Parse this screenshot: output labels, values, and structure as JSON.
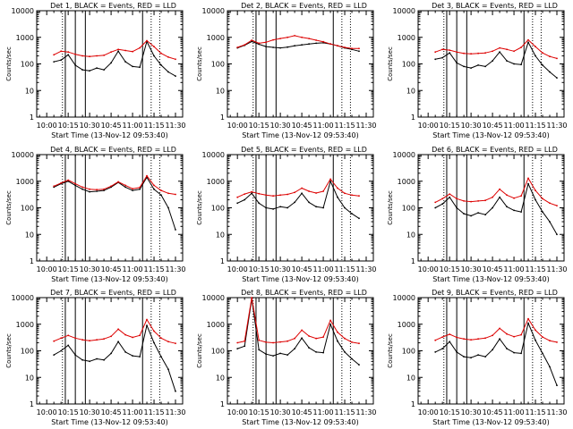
{
  "figure": {
    "ylabel": "Counts/sec",
    "xlabel": "Start Time (13-Nov-12 09:53:40)",
    "y_ticks": [
      "1",
      "10",
      "100",
      "1000",
      "10000"
    ],
    "x_ticks": [
      "10:00",
      "10:15",
      "10:30",
      "10:45",
      "11:00",
      "11:15",
      "11:30"
    ]
  },
  "colors": {
    "events": "#000000",
    "lld": "#dd0000"
  },
  "chart_data": [
    {
      "type": "line",
      "title": "Det 1,  BLACK = Events,  RED = LLD",
      "xlabel": "Start Time (13-Nov-12 09:53:40)",
      "ylabel": "Counts/sec",
      "y_scale": "log",
      "ylim": [
        1,
        10000
      ],
      "x": [
        "10:05",
        "10:10",
        "10:15",
        "10:20",
        "10:25",
        "10:30",
        "10:35",
        "10:40",
        "10:45",
        "10:50",
        "10:55",
        "11:00",
        "11:05",
        "11:10",
        "11:15",
        "11:20",
        "11:25",
        "11:30"
      ],
      "series": [
        {
          "name": "Events",
          "color": "black",
          "values": [
            120,
            140,
            220,
            90,
            60,
            55,
            70,
            60,
            110,
            300,
            120,
            80,
            75,
            700,
            200,
            90,
            50,
            35
          ]
        },
        {
          "name": "LLD",
          "color": "red",
          "values": [
            220,
            300,
            280,
            230,
            200,
            190,
            200,
            210,
            280,
            350,
            320,
            290,
            400,
            750,
            450,
            250,
            180,
            150
          ]
        }
      ],
      "vlines_solid": [
        "10:13",
        "10:20",
        "10:27",
        "11:07"
      ],
      "vlines_dotted": [
        "10:11",
        "11:13",
        "11:19"
      ]
    },
    {
      "type": "line",
      "title": "Det 2,  BLACK = Events,  RED = LLD",
      "xlabel": "Start Time (13-Nov-12 09:53:40)",
      "ylabel": "Counts/sec",
      "y_scale": "log",
      "ylim": [
        1,
        10000
      ],
      "x": [
        "10:00",
        "10:05",
        "10:10",
        "10:15",
        "10:20",
        "10:25",
        "10:30",
        "10:35",
        "10:40",
        "10:45",
        "10:50",
        "10:55",
        "11:00",
        "11:05",
        "11:10",
        "11:15",
        "11:20",
        "11:25"
      ],
      "series": [
        {
          "name": "Events",
          "color": "black",
          "values": [
            400,
            500,
            700,
            550,
            450,
            420,
            400,
            430,
            480,
            520,
            560,
            600,
            620,
            560,
            480,
            400,
            350,
            300
          ]
        },
        {
          "name": "LLD",
          "color": "red",
          "values": [
            420,
            520,
            780,
            600,
            650,
            800,
            900,
            1000,
            1150,
            1000,
            900,
            780,
            680,
            560,
            480,
            420,
            380,
            380
          ]
        }
      ],
      "vlines_solid": [
        "10:13",
        "10:20",
        "10:27",
        "11:07"
      ],
      "vlines_dotted": [
        "10:11",
        "11:13",
        "11:19"
      ]
    },
    {
      "type": "line",
      "title": "Det 3,  BLACK = Events,  RED = LLD",
      "xlabel": "Start Time (13-Nov-12 09:53:40)",
      "ylabel": "Counts/sec",
      "y_scale": "log",
      "ylim": [
        1,
        10000
      ],
      "x": [
        "10:05",
        "10:10",
        "10:15",
        "10:20",
        "10:25",
        "10:30",
        "10:35",
        "10:40",
        "10:45",
        "10:50",
        "10:55",
        "11:00",
        "11:05",
        "11:10",
        "11:15",
        "11:20",
        "11:25",
        "11:30"
      ],
      "series": [
        {
          "name": "Events",
          "color": "black",
          "values": [
            150,
            170,
            260,
            110,
            80,
            70,
            90,
            80,
            130,
            280,
            130,
            100,
            95,
            650,
            200,
            90,
            50,
            30
          ]
        },
        {
          "name": "LLD",
          "color": "red",
          "values": [
            280,
            350,
            330,
            280,
            250,
            240,
            250,
            260,
            300,
            400,
            350,
            300,
            420,
            800,
            450,
            260,
            190,
            160
          ]
        }
      ],
      "vlines_solid": [
        "10:13",
        "10:20",
        "10:27",
        "11:07"
      ],
      "vlines_dotted": [
        "10:11",
        "11:13",
        "11:19"
      ]
    },
    {
      "type": "line",
      "title": "Det 4,  BLACK = Events,  RED = LLD",
      "xlabel": "Start Time (13-Nov-12 09:53:40)",
      "ylabel": "Counts/sec",
      "y_scale": "log",
      "ylim": [
        1,
        10000
      ],
      "x": [
        "10:05",
        "10:10",
        "10:15",
        "10:20",
        "10:25",
        "10:30",
        "10:35",
        "10:40",
        "10:45",
        "10:50",
        "10:55",
        "11:00",
        "11:05",
        "11:10",
        "11:15",
        "11:20",
        "11:25",
        "11:30"
      ],
      "series": [
        {
          "name": "Events",
          "color": "black",
          "values": [
            600,
            800,
            1000,
            700,
            500,
            400,
            420,
            450,
            600,
            900,
            600,
            450,
            500,
            1400,
            500,
            300,
            100,
            15
          ]
        },
        {
          "name": "LLD",
          "color": "red",
          "values": [
            650,
            850,
            1100,
            800,
            600,
            500,
            480,
            500,
            650,
            950,
            700,
            520,
            580,
            1600,
            700,
            450,
            350,
            320
          ]
        }
      ],
      "vlines_solid": [
        "10:13",
        "10:20",
        "10:27",
        "11:07"
      ],
      "vlines_dotted": [
        "10:11",
        "11:13",
        "11:19"
      ]
    },
    {
      "type": "line",
      "title": "Det 5,  BLACK = Events,  RED = LLD",
      "xlabel": "Start Time (13-Nov-12 09:53:40)",
      "ylabel": "Counts/sec",
      "y_scale": "log",
      "ylim": [
        1,
        10000
      ],
      "x": [
        "10:00",
        "10:05",
        "10:10",
        "10:15",
        "10:20",
        "10:25",
        "10:30",
        "10:35",
        "10:40",
        "10:45",
        "10:50",
        "10:55",
        "11:00",
        "11:05",
        "11:10",
        "11:15",
        "11:20",
        "11:25"
      ],
      "series": [
        {
          "name": "Events",
          "color": "black",
          "values": [
            150,
            200,
            350,
            150,
            100,
            90,
            110,
            100,
            160,
            350,
            160,
            110,
            100,
            1000,
            250,
            100,
            60,
            40
          ]
        },
        {
          "name": "LLD",
          "color": "red",
          "values": [
            250,
            330,
            400,
            340,
            300,
            280,
            300,
            320,
            380,
            550,
            420,
            360,
            420,
            1200,
            550,
            350,
            300,
            280
          ]
        }
      ],
      "vlines_solid": [
        "10:13",
        "10:20",
        "10:27",
        "11:07"
      ],
      "vlines_dotted": [
        "10:11",
        "11:13",
        "11:19"
      ]
    },
    {
      "type": "line",
      "title": "Det 6,  BLACK = Events,  RED = LLD",
      "xlabel": "Start Time (13-Nov-12 09:53:40)",
      "ylabel": "Counts/sec",
      "y_scale": "log",
      "ylim": [
        1,
        10000
      ],
      "x": [
        "10:05",
        "10:10",
        "10:15",
        "10:20",
        "10:25",
        "10:30",
        "10:35",
        "10:40",
        "10:45",
        "10:50",
        "10:55",
        "11:00",
        "11:05",
        "11:10",
        "11:15",
        "11:20",
        "11:25",
        "11:30"
      ],
      "series": [
        {
          "name": "Events",
          "color": "black",
          "values": [
            100,
            140,
            250,
            100,
            60,
            50,
            65,
            55,
            100,
            250,
            110,
            80,
            70,
            800,
            200,
            70,
            30,
            10
          ]
        },
        {
          "name": "LLD",
          "color": "red",
          "values": [
            160,
            220,
            330,
            220,
            180,
            170,
            180,
            190,
            250,
            500,
            300,
            230,
            280,
            1300,
            450,
            220,
            150,
            120
          ]
        }
      ],
      "vlines_solid": [
        "10:13",
        "10:20",
        "10:27",
        "11:07"
      ],
      "vlines_dotted": [
        "10:11",
        "11:13",
        "11:19"
      ]
    },
    {
      "type": "line",
      "title": "Det 7,  BLACK = Events,  RED = LLD",
      "xlabel": "Start Time (13-Nov-12 09:53:40)",
      "ylabel": "Counts/sec",
      "y_scale": "log",
      "ylim": [
        1,
        10000
      ],
      "x": [
        "10:05",
        "10:10",
        "10:15",
        "10:20",
        "10:25",
        "10:30",
        "10:35",
        "10:40",
        "10:45",
        "10:50",
        "10:55",
        "11:00",
        "11:05",
        "11:10",
        "11:15",
        "11:20",
        "11:25",
        "11:30"
      ],
      "series": [
        {
          "name": "Events",
          "color": "black",
          "values": [
            70,
            100,
            160,
            70,
            45,
            40,
            50,
            45,
            80,
            220,
            90,
            65,
            60,
            900,
            200,
            60,
            20,
            3
          ]
        },
        {
          "name": "LLD",
          "color": "red",
          "values": [
            230,
            300,
            380,
            300,
            260,
            240,
            260,
            280,
            350,
            650,
            400,
            320,
            380,
            1500,
            550,
            300,
            220,
            190
          ]
        }
      ],
      "vlines_solid": [
        "10:13",
        "10:20",
        "10:27",
        "11:07"
      ],
      "vlines_dotted": [
        "10:11",
        "11:13",
        "11:19"
      ]
    },
    {
      "type": "line",
      "title": "Det 8,  BLACK = Events,  RED = LLD",
      "xlabel": "Start Time (13-Nov-12 09:53:40)",
      "ylabel": "Counts/sec",
      "y_scale": "log",
      "ylim": [
        1,
        10000
      ],
      "x": [
        "10:00",
        "10:05",
        "10:10",
        "10:15",
        "10:20",
        "10:25",
        "10:30",
        "10:35",
        "10:40",
        "10:45",
        "10:50",
        "10:55",
        "11:00",
        "11:05",
        "11:10",
        "11:15",
        "11:20",
        "11:25"
      ],
      "series": [
        {
          "name": "Events",
          "color": "black",
          "values": [
            120,
            150,
            9000,
            110,
            75,
            65,
            80,
            70,
            120,
            300,
            130,
            90,
            85,
            1000,
            230,
            90,
            50,
            30
          ]
        },
        {
          "name": "LLD",
          "color": "red",
          "values": [
            200,
            230,
            10000,
            250,
            210,
            200,
            215,
            230,
            290,
            600,
            360,
            290,
            330,
            1400,
            500,
            290,
            210,
            190
          ]
        }
      ],
      "vlines_solid": [
        "10:13",
        "10:20",
        "10:27",
        "11:07"
      ],
      "vlines_dotted": [
        "10:11",
        "11:13",
        "11:19"
      ]
    },
    {
      "type": "line",
      "title": "Det 9,  BLACK = Events,  RED = LLD",
      "xlabel": "Start Time (13-Nov-12 09:53:40)",
      "ylabel": "Counts/sec",
      "y_scale": "log",
      "ylim": [
        1,
        10000
      ],
      "x": [
        "10:05",
        "10:10",
        "10:15",
        "10:20",
        "10:25",
        "10:30",
        "10:35",
        "10:40",
        "10:45",
        "10:50",
        "10:55",
        "11:00",
        "11:05",
        "11:10",
        "11:15",
        "11:20",
        "11:25",
        "11:30"
      ],
      "series": [
        {
          "name": "Events",
          "color": "black",
          "values": [
            90,
            120,
            220,
            90,
            60,
            55,
            70,
            60,
            110,
            280,
            120,
            85,
            80,
            1100,
            250,
            80,
            25,
            5
          ]
        },
        {
          "name": "LLD",
          "color": "red",
          "values": [
            250,
            330,
            420,
            320,
            280,
            260,
            280,
            300,
            380,
            700,
            430,
            340,
            400,
            1600,
            600,
            330,
            240,
            210
          ]
        }
      ],
      "vlines_solid": [
        "10:13",
        "10:20",
        "10:27",
        "11:07"
      ],
      "vlines_dotted": [
        "10:11",
        "11:13",
        "11:19"
      ]
    }
  ]
}
